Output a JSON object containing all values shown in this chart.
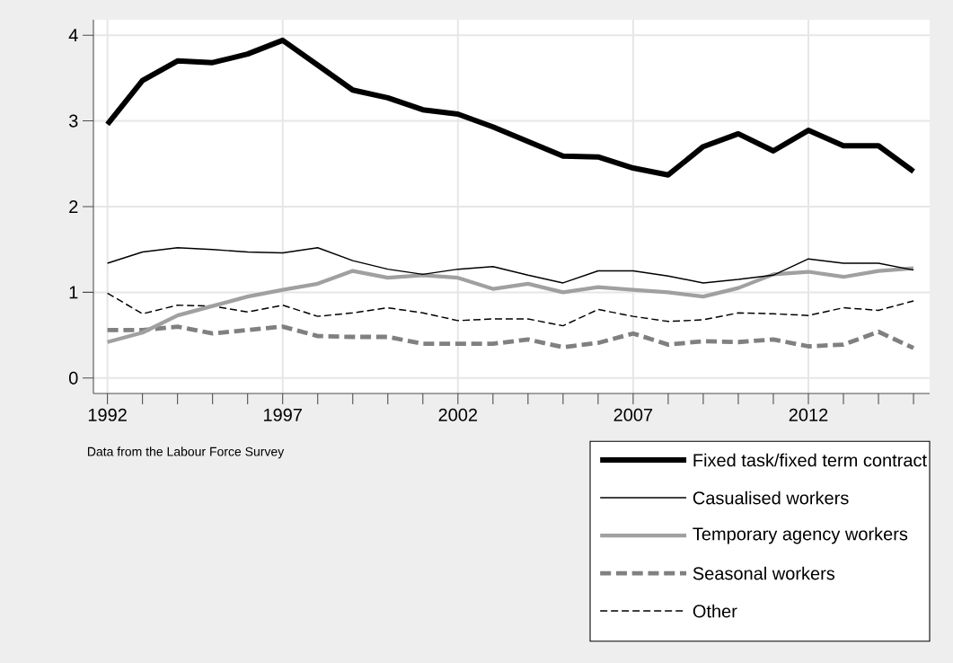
{
  "chart_data": {
    "type": "line",
    "x": [
      1992,
      1993,
      1994,
      1995,
      1996,
      1997,
      1998,
      1999,
      2000,
      2001,
      2002,
      2003,
      2004,
      2005,
      2006,
      2007,
      2008,
      2009,
      2010,
      2011,
      2012,
      2013,
      2014,
      2015
    ],
    "series": [
      {
        "name": "Fixed task/fixed term contract",
        "color": "#000000",
        "line_style": "solid",
        "values": [
          2.96,
          3.47,
          3.7,
          3.68,
          3.78,
          3.94,
          3.65,
          3.36,
          3.27,
          3.13,
          3.08,
          2.93,
          2.76,
          2.59,
          2.58,
          2.45,
          2.37,
          2.7,
          2.85,
          2.65,
          2.89,
          2.71,
          2.71,
          2.41
        ]
      },
      {
        "name": "Casualised workers",
        "color": "#000000",
        "line_style": "solid",
        "values": [
          1.34,
          1.47,
          1.52,
          1.5,
          1.47,
          1.46,
          1.52,
          1.37,
          1.27,
          1.21,
          1.27,
          1.3,
          1.2,
          1.11,
          1.25,
          1.25,
          1.19,
          1.11,
          1.15,
          1.2,
          1.39,
          1.34,
          1.34,
          1.26
        ]
      },
      {
        "name": "Temporary agency workers",
        "color": "#a0a0a0",
        "line_style": "solid",
        "values": [
          0.42,
          0.53,
          0.73,
          0.84,
          0.95,
          1.03,
          1.1,
          1.25,
          1.17,
          1.2,
          1.17,
          1.04,
          1.1,
          1.0,
          1.06,
          1.03,
          1.0,
          0.95,
          1.05,
          1.21,
          1.24,
          1.18,
          1.25,
          1.28
        ]
      },
      {
        "name": "Seasonal workers",
        "color": "#808080",
        "line_style": "dashed",
        "values": [
          0.56,
          0.56,
          0.6,
          0.52,
          0.56,
          0.6,
          0.49,
          0.48,
          0.48,
          0.4,
          0.4,
          0.4,
          0.45,
          0.36,
          0.41,
          0.52,
          0.39,
          0.43,
          0.42,
          0.45,
          0.37,
          0.39,
          0.54,
          0.35
        ]
      },
      {
        "name": "Other",
        "color": "#000000",
        "line_style": "dashed",
        "values": [
          0.99,
          0.75,
          0.85,
          0.84,
          0.77,
          0.85,
          0.72,
          0.76,
          0.82,
          0.76,
          0.67,
          0.69,
          0.69,
          0.61,
          0.8,
          0.72,
          0.66,
          0.68,
          0.76,
          0.75,
          0.73,
          0.82,
          0.79,
          0.9
        ]
      }
    ],
    "xlim": [
      1991.6,
      2015.46
    ],
    "ylim": [
      -0.18,
      4.18
    ],
    "xticks": [
      1992,
      {
        "value": 1993,
        "label": null
      },
      {
        "value": 1994,
        "label": null
      },
      {
        "value": 1995,
        "label": null
      },
      {
        "value": 1996,
        "label": null
      },
      1997,
      {
        "value": 1998,
        "label": null
      },
      {
        "value": 1999,
        "label": null
      },
      {
        "value": 2000,
        "label": null
      },
      {
        "value": 2001,
        "label": null
      },
      2002,
      {
        "value": 2003,
        "label": null
      },
      {
        "value": 2004,
        "label": null
      },
      {
        "value": 2005,
        "label": null
      },
      {
        "value": 2006,
        "label": null
      },
      2007,
      {
        "value": 2008,
        "label": null
      },
      {
        "value": 2009,
        "label": null
      },
      {
        "value": 2010,
        "label": null
      },
      {
        "value": 2011,
        "label": null
      },
      2012,
      {
        "value": 2013,
        "label": null
      },
      {
        "value": 2014,
        "label": null
      },
      {
        "value": 2015,
        "label": null
      }
    ],
    "yticks": [
      0,
      1,
      2,
      3,
      4
    ],
    "grid": true,
    "legend": "bottom right",
    "marker": "none",
    "annotations": [
      "Data from the Labour Force Survey"
    ]
  }
}
